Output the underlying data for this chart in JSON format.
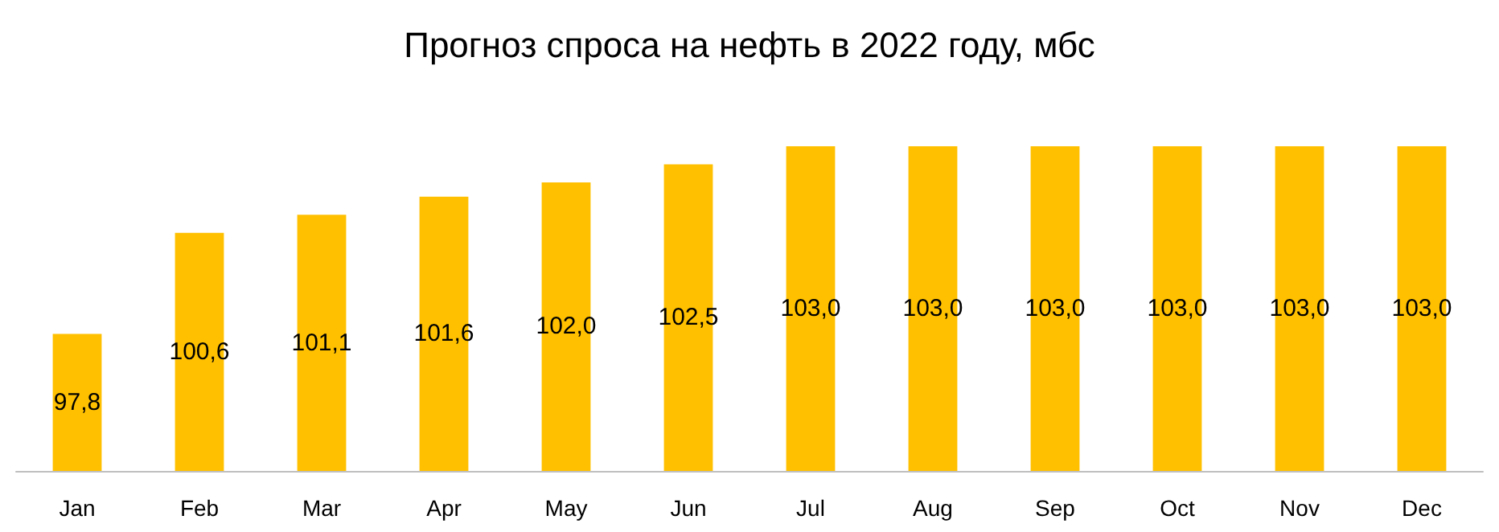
{
  "chart_data": {
    "type": "bar",
    "title": "Прогноз спроса на нефть в 2022 году, мбс",
    "categories": [
      "Jan",
      "Feb",
      "Mar",
      "Apr",
      "May",
      "Jun",
      "Jul",
      "Aug",
      "Sep",
      "Oct",
      "Nov",
      "Dec"
    ],
    "values": [
      97.8,
      100.6,
      101.1,
      101.6,
      102.0,
      102.5,
      103.0,
      103.0,
      103.0,
      103.0,
      103.0,
      103.0
    ],
    "value_labels": [
      "97,8",
      "100,6",
      "101,1",
      "101,6",
      "102,0",
      "102,5",
      "103,0",
      "103,0",
      "103,0",
      "103,0",
      "103,0",
      "103,0"
    ],
    "color": "#ffc000",
    "ylim": [
      94,
      103
    ],
    "grid": false,
    "tick_labels": "x"
  }
}
